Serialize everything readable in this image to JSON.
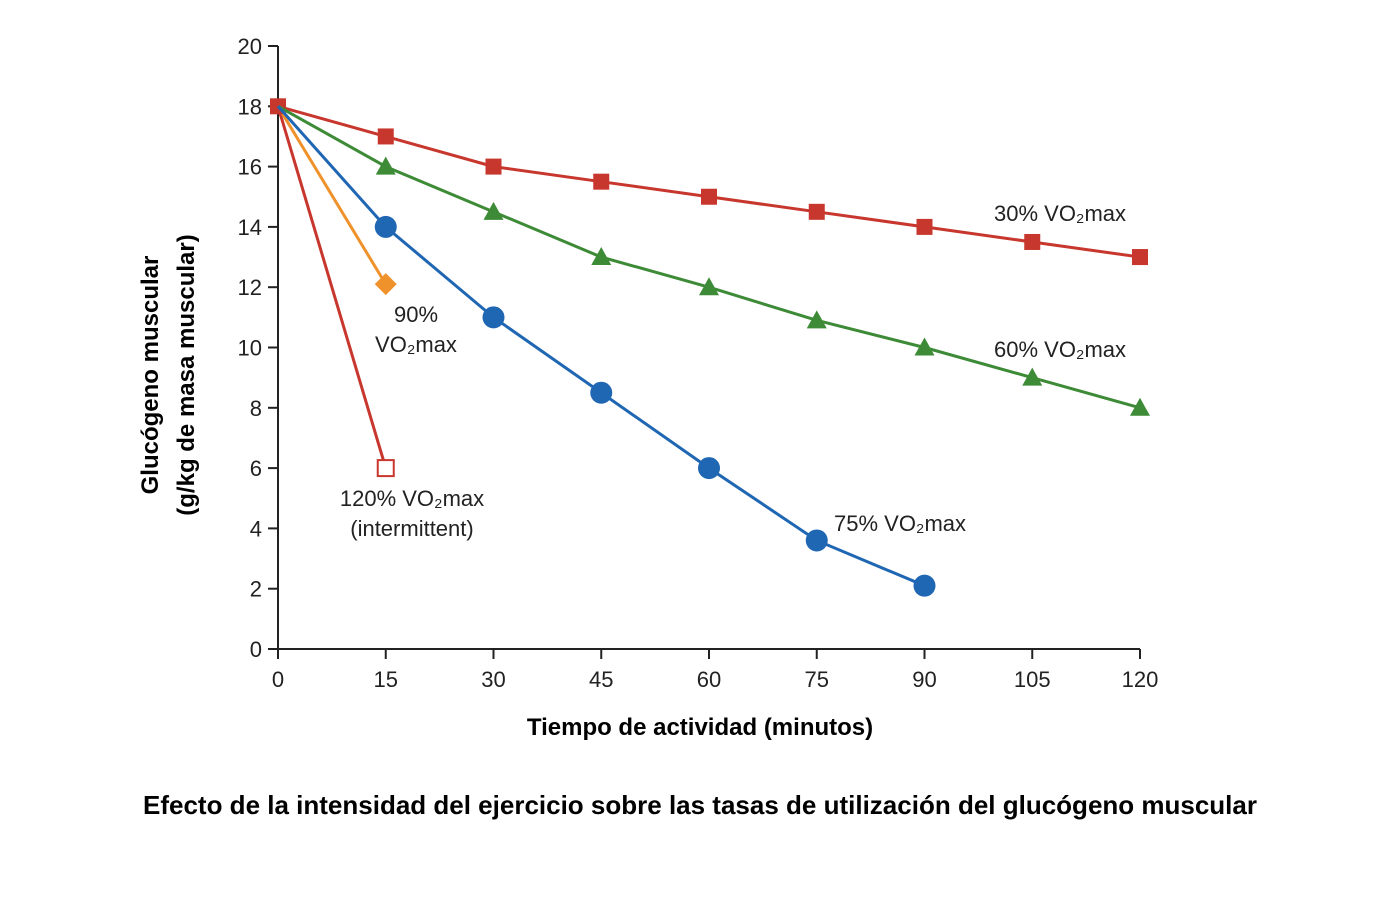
{
  "caption": "Efecto de la intensidad del ejercicio sobre las tasas de utilización del glucógeno muscular",
  "chart_data": {
    "type": "line",
    "xlabel": "Tiempo de actividad (minutos)",
    "ylabel_line1": "Glucógeno muscular",
    "ylabel_line2": "(g/kg de masa muscular)",
    "xlim": [
      0,
      120
    ],
    "ylim": [
      0,
      20
    ],
    "xticks": [
      0,
      15,
      30,
      45,
      60,
      75,
      90,
      105,
      120
    ],
    "yticks": [
      0,
      2,
      4,
      6,
      8,
      10,
      12,
      14,
      16,
      18,
      20
    ],
    "grid": false,
    "series": [
      {
        "key": "s30",
        "label_lines": [
          "30% VO₂max"
        ],
        "color": "#c8372d",
        "marker": "square",
        "x": [
          0,
          15,
          30,
          45,
          60,
          75,
          90,
          105,
          120
        ],
        "y": [
          18,
          17,
          16,
          15.5,
          15,
          14.5,
          14,
          13.5,
          13
        ]
      },
      {
        "key": "s60",
        "label_lines": [
          "60% VO₂max"
        ],
        "color": "#3d8a37",
        "marker": "triangle",
        "x": [
          0,
          15,
          30,
          45,
          60,
          75,
          90,
          105,
          120
        ],
        "y": [
          18,
          16,
          14.5,
          13,
          12,
          10.9,
          10,
          9,
          8
        ]
      },
      {
        "key": "s75",
        "label_lines": [
          "75% VO₂max"
        ],
        "color": "#1f66b3",
        "marker": "circle",
        "x": [
          0,
          15,
          30,
          45,
          60,
          75,
          90
        ],
        "y": [
          18,
          14,
          11,
          8.5,
          6,
          3.6,
          2.1
        ]
      },
      {
        "key": "s90",
        "label_lines": [
          "90%",
          "VO₂max"
        ],
        "color": "#f0922c",
        "marker": "diamond",
        "x": [
          0,
          15
        ],
        "y": [
          18,
          12.1
        ]
      },
      {
        "key": "s120",
        "label_lines": [
          "120% VO₂max",
          "(intermittent)"
        ],
        "color": "#c8372d",
        "marker": "open-square",
        "x": [
          0,
          15
        ],
        "y": [
          18,
          6
        ]
      }
    ]
  }
}
